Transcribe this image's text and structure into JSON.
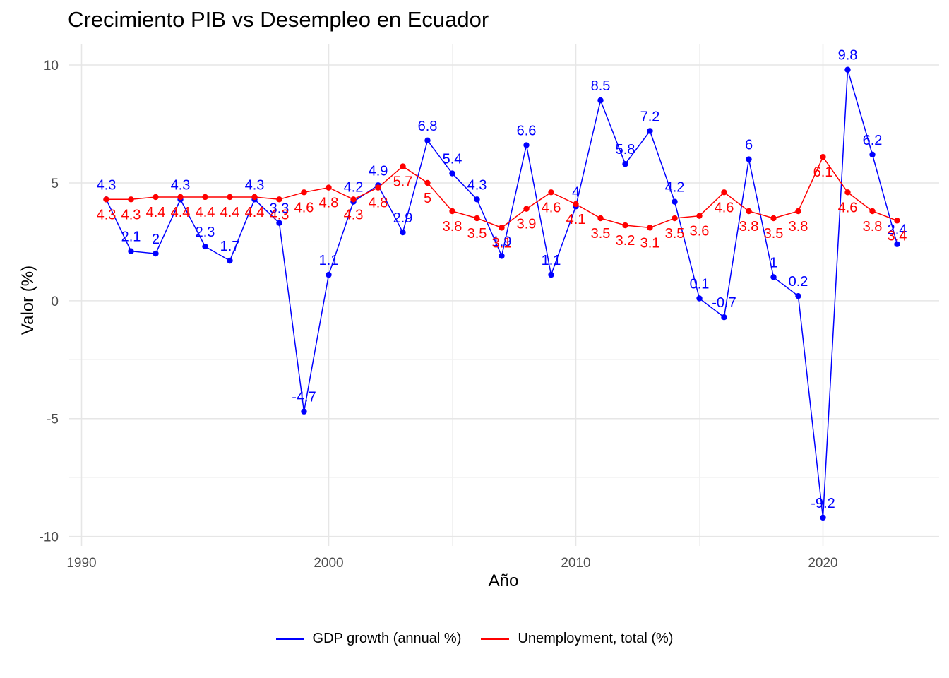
{
  "chart_data": {
    "type": "line",
    "title": "Crecimiento PIB vs Desempleo en Ecuador",
    "xlabel": "Año",
    "ylabel": "Valor (%)",
    "xlim": [
      1989.5,
      2024.7
    ],
    "ylim": [
      -10.4,
      10.9
    ],
    "x_ticks": [
      1990,
      2000,
      2010,
      2020
    ],
    "y_ticks": [
      -10,
      -5,
      0,
      5,
      10
    ],
    "y_tick_labels": [
      "-10",
      "-5",
      "0",
      "5",
      "10"
    ],
    "grid": true,
    "legend_position": "bottom",
    "x": [
      1991,
      1992,
      1993,
      1994,
      1995,
      1996,
      1997,
      1998,
      1999,
      2000,
      2001,
      2002,
      2003,
      2004,
      2005,
      2006,
      2007,
      2008,
      2009,
      2010,
      2011,
      2012,
      2013,
      2014,
      2015,
      2016,
      2017,
      2018,
      2019,
      2020,
      2021,
      2022,
      2023
    ],
    "series": [
      {
        "name": "GDP growth (annual %)",
        "color": "#0000ff",
        "values": [
          4.3,
          2.1,
          2.0,
          4.3,
          2.3,
          1.7,
          4.3,
          3.3,
          -4.7,
          1.1,
          4.2,
          4.9,
          2.9,
          6.8,
          5.4,
          4.3,
          1.9,
          6.6,
          1.1,
          4.0,
          8.5,
          5.8,
          7.2,
          4.2,
          0.1,
          -0.7,
          6.0,
          1.0,
          0.2,
          -9.2,
          9.8,
          6.2,
          2.4
        ],
        "labels": [
          "4.3",
          "2.1",
          "2",
          "4.3",
          "2.3",
          "1.7",
          "4.3",
          "3.3",
          "-4.7",
          "1.1",
          "4.2",
          "4.9",
          "2.9",
          "6.8",
          "5.4",
          "4.3",
          "1.9",
          "6.6",
          "1.1",
          "4",
          "8.5",
          "5.8",
          "7.2",
          "4.2",
          "0.1",
          "-0.7",
          "6",
          "1",
          "0.2",
          "-9.2",
          "9.8",
          "6.2",
          "2.4"
        ]
      },
      {
        "name": "Unemployment, total (%)",
        "color": "#ff0000",
        "values": [
          4.3,
          4.3,
          4.4,
          4.4,
          4.4,
          4.4,
          4.4,
          4.3,
          4.6,
          4.8,
          4.3,
          4.8,
          5.7,
          5.0,
          3.8,
          3.5,
          3.1,
          3.9,
          4.6,
          4.1,
          3.5,
          3.2,
          3.1,
          3.5,
          3.6,
          4.6,
          3.8,
          3.5,
          3.8,
          6.1,
          4.6,
          3.8,
          3.4
        ],
        "labels": [
          "4.3",
          "4.3",
          "4.4",
          "4.4",
          "4.4",
          "4.4",
          "4.4",
          "4.3",
          "4.6",
          "4.8",
          "4.3",
          "4.8",
          "5.7",
          "5",
          "3.8",
          "3.5",
          "3.1",
          "3.9",
          "4.6",
          "4.1",
          "3.5",
          "3.2",
          "3.1",
          "3.5",
          "3.6",
          "4.6",
          "3.8",
          "3.5",
          "3.8",
          "6.1",
          "4.6",
          "3.8",
          "3.4"
        ]
      }
    ]
  }
}
